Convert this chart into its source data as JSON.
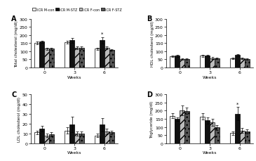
{
  "legend_labels": [
    "ICR M-con",
    "ICR M-STZ",
    "ICR F-con",
    "ICR F-STZ"
  ],
  "bar_colors": [
    "white",
    "#111111",
    "#bbbbbb",
    "#555555"
  ],
  "bar_hatches": [
    "",
    "",
    "///",
    "..."
  ],
  "bar_edgecolors": [
    "#000000",
    "#000000",
    "#000000",
    "#000000"
  ],
  "weeks": [
    0,
    3,
    6
  ],
  "A": {
    "title": "A",
    "ylabel": "Total cholesterol (mg/dl)",
    "xlabel": "Weeks",
    "ylim": [
      0,
      300
    ],
    "yticks": [
      0,
      50,
      100,
      150,
      200,
      250,
      300
    ],
    "data": [
      [
        152,
        158,
        115,
        115
      ],
      [
        157,
        168,
        120,
        122
      ],
      [
        115,
        168,
        120,
        107
      ]
    ],
    "errors": [
      [
        8,
        8,
        5,
        5
      ],
      [
        8,
        15,
        8,
        8
      ],
      [
        8,
        20,
        8,
        5
      ]
    ],
    "star": [
      false,
      false,
      true
    ],
    "star_bar_idx": 1
  },
  "B": {
    "title": "B",
    "ylabel": "HDL cholesterol (mg/dl)",
    "xlabel": "Weeks",
    "ylim": [
      0,
      300
    ],
    "yticks": [
      0,
      50,
      100,
      150,
      200,
      250,
      300
    ],
    "data": [
      [
        68,
        72,
        52,
        52
      ],
      [
        72,
        75,
        58,
        58
      ],
      [
        55,
        78,
        55,
        52
      ]
    ],
    "errors": [
      [
        5,
        5,
        3,
        3
      ],
      [
        6,
        5,
        5,
        4
      ],
      [
        4,
        6,
        4,
        3
      ]
    ],
    "star": [
      false,
      false,
      false
    ],
    "star_bar_idx": 0
  },
  "C": {
    "title": "C",
    "ylabel": "LDL cholesterol (mg/dl)",
    "xlabel": "Weeks",
    "ylim": [
      0,
      50
    ],
    "yticks": [
      0,
      10,
      20,
      30,
      40,
      50
    ],
    "data": [
      [
        11,
        15,
        8,
        9
      ],
      [
        13,
        19,
        10,
        10
      ],
      [
        8,
        19,
        12,
        11
      ]
    ],
    "errors": [
      [
        2,
        3,
        2,
        2
      ],
      [
        3,
        8,
        2,
        2
      ],
      [
        2,
        7,
        3,
        2
      ]
    ],
    "star": [
      false,
      false,
      false
    ],
    "star_bar_idx": 0
  },
  "D": {
    "title": "D",
    "ylabel": "Triglyceride (mg/dl)",
    "xlabel": "Weeks",
    "ylim": [
      0,
      300
    ],
    "yticks": [
      0,
      50,
      100,
      150,
      200,
      250,
      300
    ],
    "data": [
      [
        168,
        148,
        200,
        198
      ],
      [
        165,
        140,
        128,
        96
      ],
      [
        62,
        182,
        78,
        72
      ]
    ],
    "errors": [
      [
        15,
        12,
        30,
        20
      ],
      [
        20,
        20,
        20,
        15
      ],
      [
        10,
        40,
        15,
        12
      ]
    ],
    "star": [
      false,
      false,
      true
    ],
    "star_bar_idx": 1
  },
  "bar_width": 0.16,
  "fig_width": 3.65,
  "fig_height": 2.3,
  "dpi": 100
}
